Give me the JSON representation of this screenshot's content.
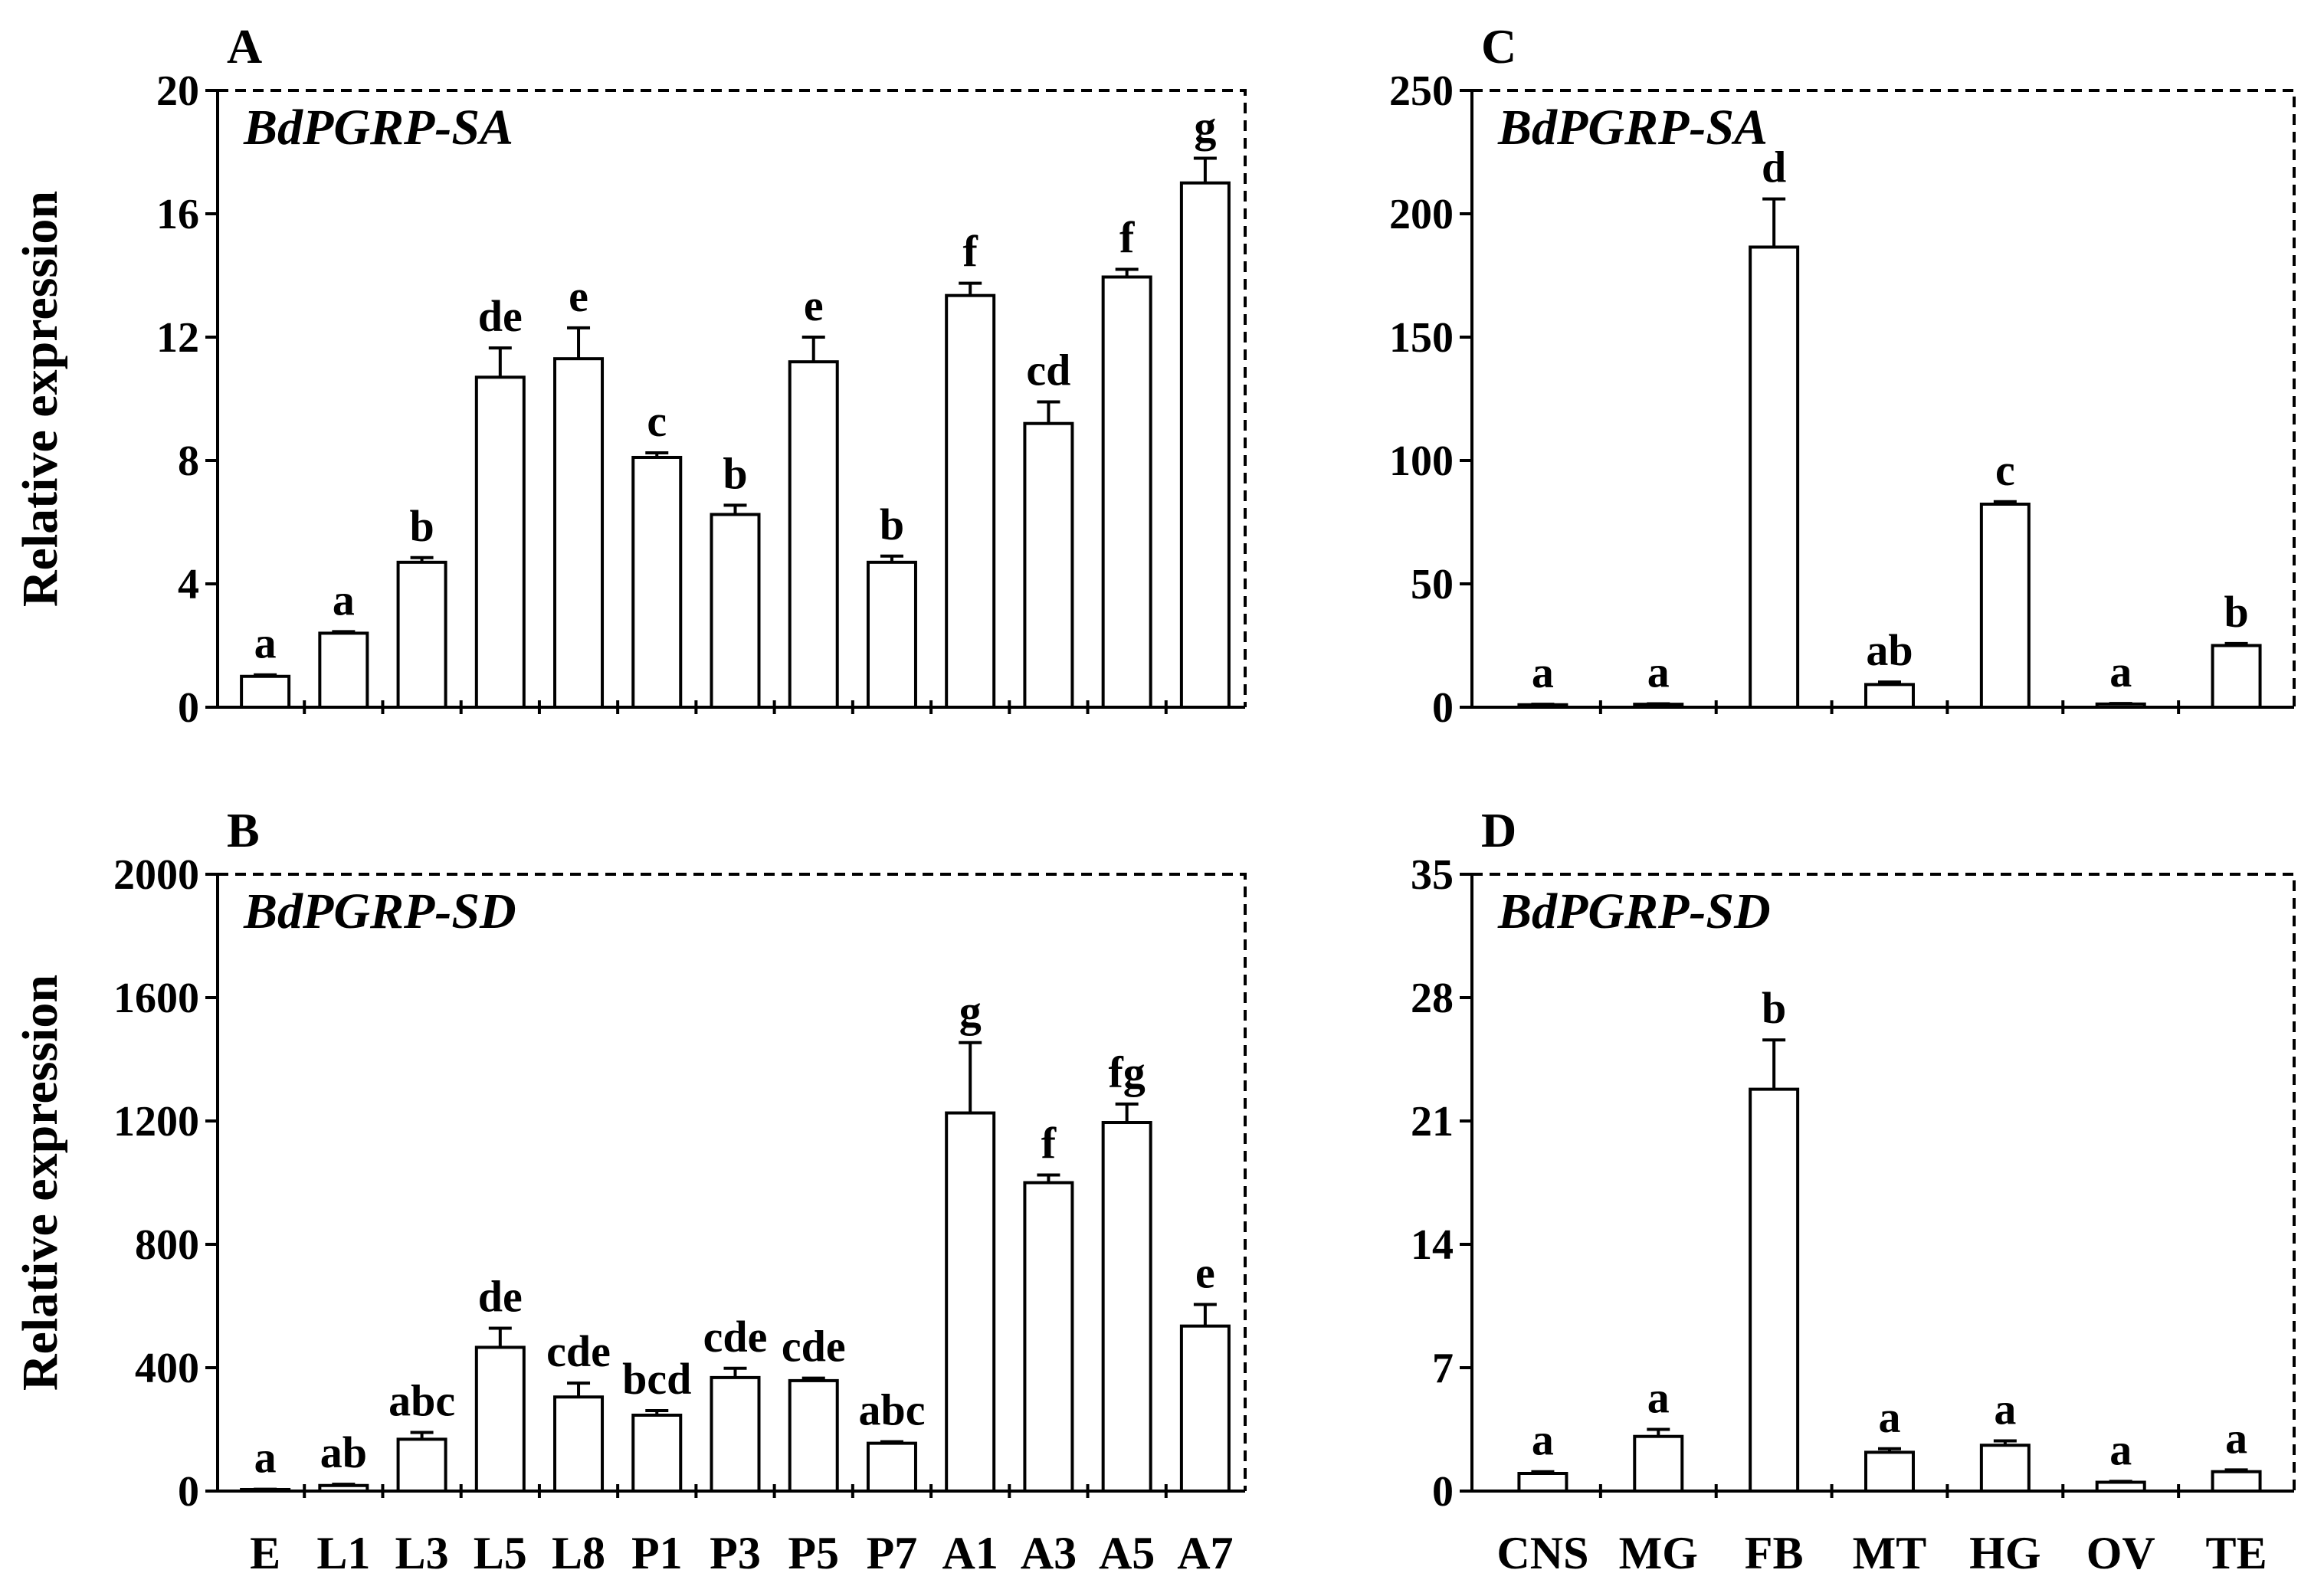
{
  "chart_data": [
    {
      "type": "bar",
      "xlabel": "",
      "categories": [
        "E",
        "L1",
        "L3",
        "L5",
        "L8",
        "P1",
        "P3",
        "P5",
        "P7",
        "A1",
        "A3",
        "A5",
        "A7"
      ],
      "panels": [
        {
          "label": "A",
          "title": "BdPGRP-SA",
          "ylabel": "Relative expression",
          "ylim": [
            0,
            20
          ],
          "yticks": [
            0,
            4,
            8,
            12,
            16,
            20
          ],
          "values": [
            1.0,
            2.4,
            4.7,
            10.7,
            11.3,
            8.1,
            6.25,
            11.2,
            4.7,
            13.35,
            9.2,
            13.95,
            17.0
          ],
          "errors": [
            0.05,
            0.05,
            0.15,
            0.95,
            1.0,
            0.15,
            0.3,
            0.8,
            0.2,
            0.4,
            0.7,
            0.25,
            0.8
          ],
          "letters": [
            "a",
            "a",
            "b",
            "de",
            "e",
            "c",
            "b",
            "e",
            "b",
            "f",
            "cd",
            "f",
            "g"
          ]
        },
        {
          "label": "B",
          "title": "BdPGRP-SD",
          "ylabel": "Relative expression",
          "ylim": [
            0,
            2000
          ],
          "yticks": [
            0,
            400,
            800,
            1200,
            1600,
            2000
          ],
          "values": [
            5,
            18,
            168,
            466,
            305,
            246,
            368,
            358,
            155,
            1226,
            1000,
            1195,
            535
          ],
          "errors": [
            1,
            4,
            22,
            62,
            45,
            15,
            30,
            8,
            5,
            228,
            25,
            60,
            70
          ],
          "letters": [
            "a",
            "ab",
            "abc",
            "de",
            "cde",
            "bcd",
            "cde",
            "cde",
            "abc",
            "g",
            "f",
            "fg",
            "e"
          ]
        }
      ]
    },
    {
      "type": "bar",
      "xlabel": "",
      "categories": [
        "CNS",
        "MG",
        "FB",
        "MT",
        "HG",
        "OV",
        "TE"
      ],
      "panels": [
        {
          "label": "C",
          "title": "BdPGRP-SA",
          "ylabel": "",
          "ylim": [
            0,
            250
          ],
          "yticks": [
            0,
            50,
            100,
            150,
            200,
            250
          ],
          "values": [
            1.0,
            1.2,
            186.5,
            9.2,
            82.3,
            1.3,
            25.0
          ],
          "errors": [
            0.2,
            0.2,
            19.5,
            1.0,
            1.0,
            0.2,
            0.8
          ],
          "letters": [
            "a",
            "a",
            "d",
            "ab",
            "c",
            "a",
            "b"
          ]
        },
        {
          "label": "D",
          "title": "BdPGRP-SD",
          "ylabel": "",
          "ylim": [
            0,
            35
          ],
          "yticks": [
            0,
            7,
            14,
            21,
            28,
            35
          ],
          "values": [
            1.0,
            3.1,
            22.8,
            2.2,
            2.6,
            0.5,
            1.1
          ],
          "errors": [
            0.1,
            0.4,
            2.8,
            0.2,
            0.25,
            0.05,
            0.1
          ],
          "letters": [
            "a",
            "a",
            "b",
            "a",
            "a",
            "a",
            "a"
          ]
        }
      ]
    }
  ]
}
